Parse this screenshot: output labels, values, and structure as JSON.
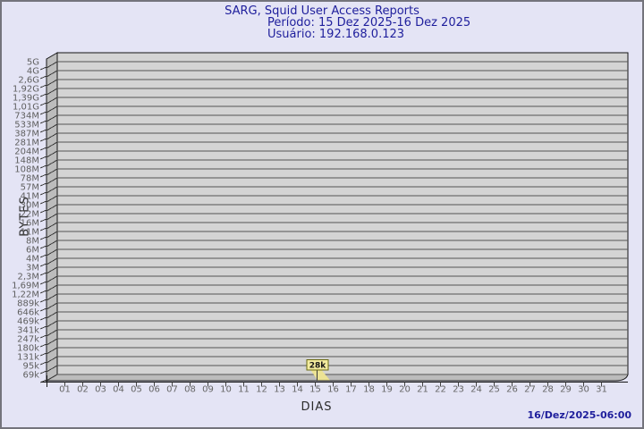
{
  "header": {
    "title": "SARG, Squid User Access Reports",
    "period": "Período: 15 Dez 2025-16 Dez 2025",
    "user": "Usuário: 192.168.0.123"
  },
  "footer": {
    "timestamp": "16/Dez/2025-06:00"
  },
  "colors": {
    "page_bg": "#e4e4f5",
    "frame_border": "#74747c",
    "title_text": "#1e1e9c",
    "plot_bg": "#d4d4d4",
    "wall_fill": "#bcbcbc",
    "grid_line": "#555555",
    "outline": "#151515",
    "tick_text": "#5f5f5f",
    "bar_fill": "#ece394",
    "flag_bg": "#f2eb9e",
    "flag_border": "#6b6b14",
    "flag_text": "#141414"
  },
  "chart_data": {
    "type": "bar",
    "style": "pseudo-3d-bars",
    "title": "SARG, Squid User Access Reports",
    "subtitle_period": "Período: 15 Dez 2025-16 Dez 2025",
    "subtitle_user": "Usuário: 192.168.0.123",
    "xlabel": "DIAS",
    "ylabel": "BYTES",
    "y_scale": "logarithmic",
    "grid": true,
    "legend": "none",
    "y_ticks": [
      "5G",
      "4G",
      "2,6G",
      "1,92G",
      "1,39G",
      "1,01G",
      "734M",
      "533M",
      "387M",
      "281M",
      "204M",
      "148M",
      "108M",
      "78M",
      "57M",
      "41M",
      "30M",
      "22M",
      "16M",
      "11M",
      "8M",
      "6M",
      "4M",
      "3M",
      "2,3M",
      "1,69M",
      "1,22M",
      "889k",
      "646k",
      "469k",
      "341k",
      "247k",
      "180k",
      "131k",
      "95k",
      "69k"
    ],
    "x_ticks": [
      "01",
      "02",
      "03",
      "04",
      "05",
      "06",
      "07",
      "08",
      "09",
      "10",
      "11",
      "12",
      "13",
      "14",
      "15",
      "16",
      "17",
      "18",
      "19",
      "20",
      "21",
      "22",
      "23",
      "24",
      "25",
      "26",
      "27",
      "28",
      "29",
      "30",
      "31"
    ],
    "values_bytes": [
      0,
      0,
      0,
      0,
      0,
      0,
      0,
      0,
      0,
      0,
      0,
      0,
      0,
      0,
      28000,
      0,
      0,
      0,
      0,
      0,
      0,
      0,
      0,
      0,
      0,
      0,
      0,
      0,
      0,
      0,
      0
    ],
    "bars": [
      {
        "x": "15",
        "value_label": "28k",
        "value_bytes": 28000
      }
    ]
  }
}
